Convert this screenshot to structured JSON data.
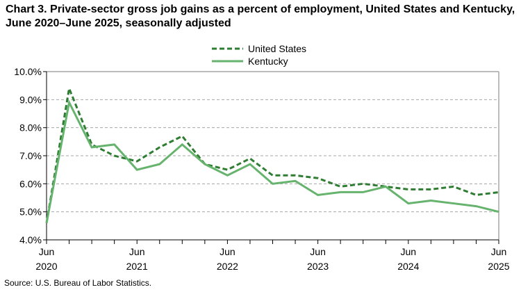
{
  "chart_data": {
    "type": "line",
    "title": "Chart 3. Private-sector gross job gains as a percent of employment, United States and Kentucky, June 2020–June 2025, seasonally adjusted",
    "xlabel": "",
    "ylabel": "",
    "x": [
      "Jun 2020",
      "Sep 2020",
      "Dec 2020",
      "Mar 2021",
      "Jun 2021",
      "Sep 2021",
      "Dec 2021",
      "Mar 2022",
      "Jun 2022",
      "Sep 2022",
      "Dec 2022",
      "Mar 2023",
      "Jun 2023",
      "Sep 2023",
      "Dec 2023",
      "Mar 2024",
      "Jun 2024",
      "Sep 2024",
      "Dec 2024",
      "Mar 2025",
      "Jun 2025"
    ],
    "x_tick_labels": [
      [
        "Jun",
        "2020"
      ],
      [
        "Jun",
        "2021"
      ],
      [
        "Jun",
        "2022"
      ],
      [
        "Jun",
        "2023"
      ],
      [
        "Jun",
        "2024"
      ],
      [
        "Jun",
        "2025"
      ]
    ],
    "ylim": [
      4.0,
      10.0
    ],
    "y_ticks": [
      "4.0%",
      "5.0%",
      "6.0%",
      "7.0%",
      "8.0%",
      "9.0%",
      "10.0%"
    ],
    "grid": "horizontal dashed",
    "legend_placement": "top-center",
    "series": [
      {
        "name": "United States",
        "style": "dashed",
        "color": "#2e7d32",
        "values": [
          4.6,
          9.4,
          7.4,
          7.0,
          6.8,
          7.3,
          7.7,
          6.7,
          6.5,
          6.9,
          6.3,
          6.3,
          6.2,
          5.9,
          6.0,
          5.9,
          5.8,
          5.8,
          5.9,
          5.6,
          5.7
        ]
      },
      {
        "name": "Kentucky",
        "style": "solid",
        "color": "#66b36e",
        "values": [
          4.6,
          8.9,
          7.3,
          7.4,
          6.5,
          6.7,
          7.4,
          6.7,
          6.3,
          6.7,
          6.0,
          6.1,
          5.6,
          5.7,
          5.7,
          5.9,
          5.3,
          5.4,
          5.3,
          5.2,
          5.0
        ]
      }
    ]
  },
  "source": "Source: U.S. Bureau of Labor Statistics."
}
